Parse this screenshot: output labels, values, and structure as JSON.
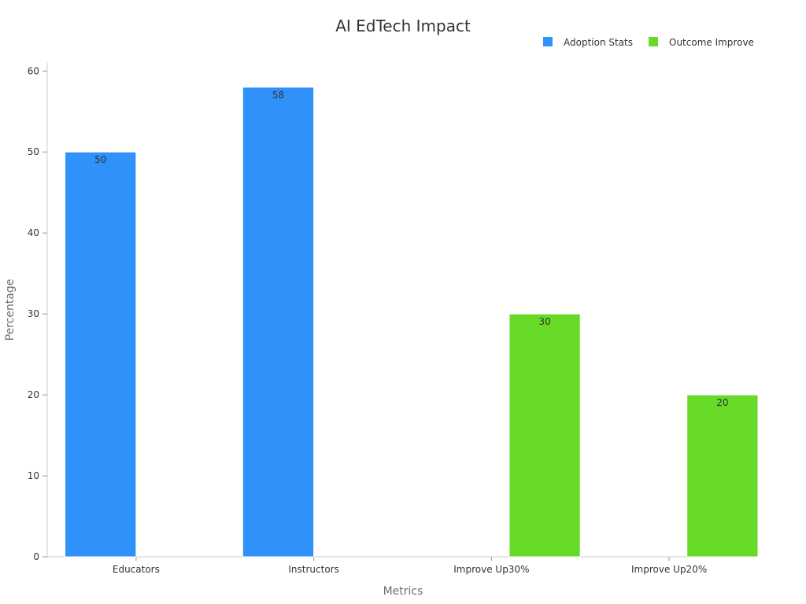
{
  "chart_data": {
    "type": "bar",
    "title": "AI EdTech Impact",
    "xlabel": "Metrics",
    "ylabel": "Percentage",
    "categories": [
      "Educators",
      "Instructors",
      "Improve Up30%",
      "Improve Up20%"
    ],
    "series": [
      {
        "name": "Adoption Stats",
        "color": "#2f92fa",
        "values": [
          50,
          58,
          null,
          null
        ]
      },
      {
        "name": "Outcome Improve",
        "color": "#67da28",
        "values": [
          null,
          null,
          30,
          20
        ]
      }
    ],
    "ylim": [
      0,
      61
    ],
    "yticks": [
      0,
      10,
      20,
      30,
      40,
      50,
      60
    ],
    "grid": false,
    "legend_position": "top-right"
  }
}
